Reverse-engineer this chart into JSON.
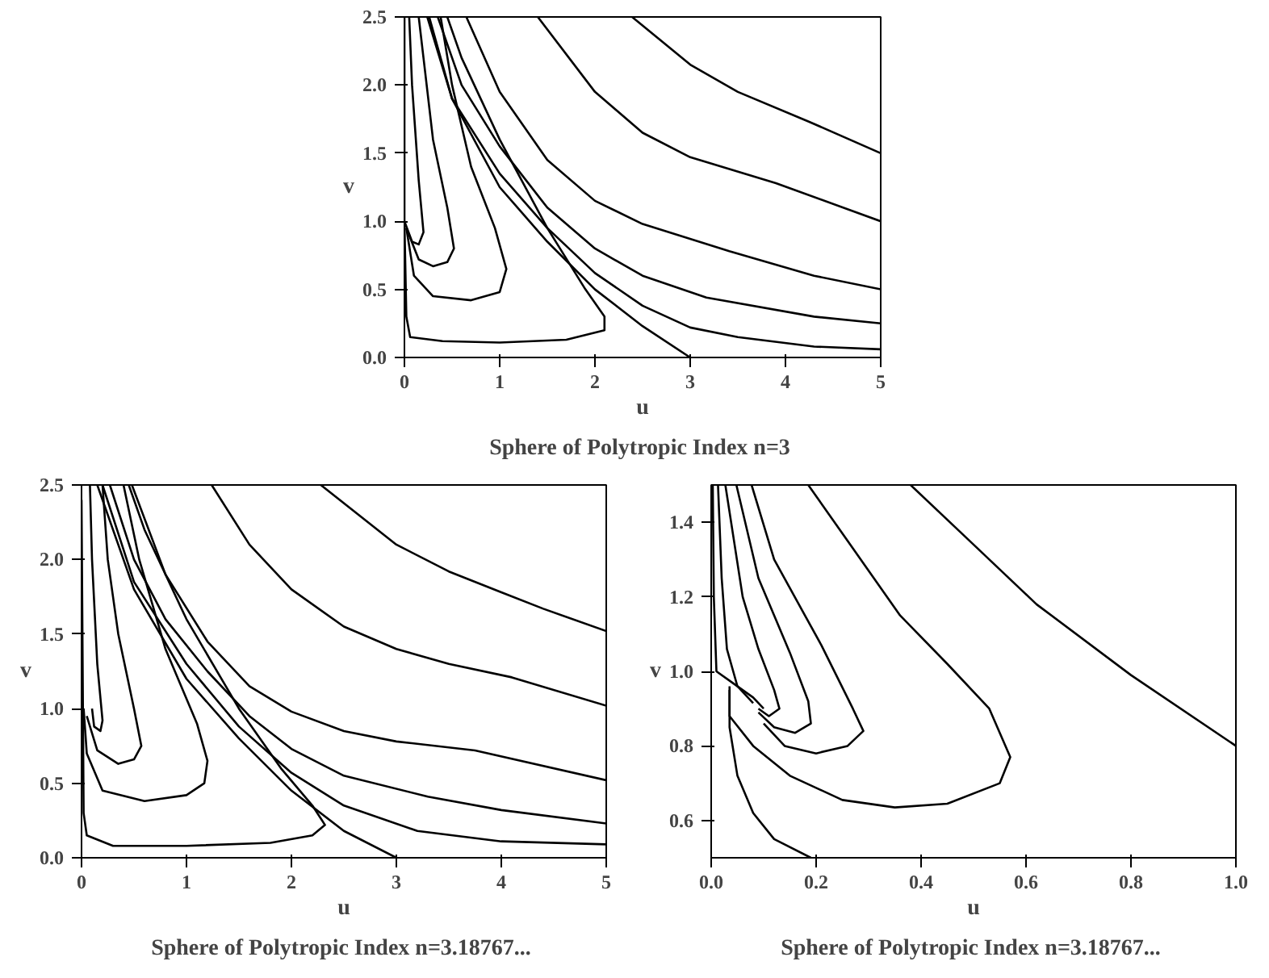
{
  "chart_data": [
    {
      "type": "line",
      "title": "Sphere of Polytropic Index  n=3",
      "xlabel": "u",
      "ylabel": "v",
      "xlim": [
        0,
        5
      ],
      "ylim": [
        0,
        2.5
      ],
      "xticks": [
        0,
        1,
        2,
        3,
        4,
        5
      ],
      "yticks": [
        {
          "value": 0,
          "label": "0.0"
        },
        {
          "value": 0.5,
          "label": "0.5"
        },
        {
          "value": 1,
          "label": "1.0"
        },
        {
          "value": 1.5,
          "label": "1.5"
        },
        {
          "value": 2,
          "label": "2.0"
        },
        {
          "value": 2.5,
          "label": "2.5"
        }
      ],
      "line_style": "solid",
      "series": [
        {
          "color": "#000000",
          "x": [
            2.39,
            3,
            3.5,
            4.25,
            5
          ],
          "values": [
            2.5,
            2.15,
            1.95,
            1.73,
            1.5
          ]
        },
        {
          "color": "#000000",
          "x": [
            1.4,
            2,
            2.5,
            3,
            3.9,
            5
          ],
          "values": [
            2.5,
            1.95,
            1.65,
            1.47,
            1.28,
            1.0
          ]
        },
        {
          "color": "#000000",
          "x": [
            0.65,
            1,
            1.5,
            2,
            2.5,
            3.41,
            4.3,
            5
          ],
          "values": [
            2.5,
            1.95,
            1.45,
            1.15,
            0.98,
            0.78,
            0.6,
            0.5
          ]
        },
        {
          "color": "#000000",
          "x": [
            0.35,
            0.6,
            1,
            1.5,
            2,
            2.5,
            3.17,
            4.3,
            5
          ],
          "values": [
            2.5,
            2.0,
            1.55,
            1.1,
            0.8,
            0.6,
            0.44,
            0.3,
            0.25
          ]
        },
        {
          "color": "#000000",
          "x": [
            0.26,
            0.5,
            1,
            1.5,
            2,
            2.5,
            3,
            3.5,
            4.3,
            5
          ],
          "values": [
            2.5,
            1.9,
            1.35,
            0.95,
            0.62,
            0.38,
            0.22,
            0.15,
            0.08,
            0.06
          ]
        },
        {
          "color": "#000000",
          "x": [
            0.24,
            0.5,
            1,
            1.5,
            2,
            2.5,
            3
          ],
          "values": [
            2.5,
            1.9,
            1.25,
            0.85,
            0.5,
            0.23,
            0
          ]
        },
        {
          "color": "#000000",
          "x": [
            0,
            0,
            0.02,
            0.06,
            0.4,
            1,
            1.7,
            2.1,
            2.1,
            1.9,
            1.5,
            1,
            0.6,
            0.45
          ],
          "values": [
            2.5,
            1.0,
            0.3,
            0.15,
            0.12,
            0.11,
            0.13,
            0.2,
            0.3,
            0.5,
            0.95,
            1.6,
            2.2,
            2.5
          ]
        },
        {
          "color": "#000000",
          "x": [
            0.02,
            0.1,
            0.3,
            0.7,
            1.0,
            1.07,
            0.95,
            0.7,
            0.5,
            0.38
          ],
          "values": [
            0.95,
            0.6,
            0.45,
            0.42,
            0.48,
            0.65,
            0.95,
            1.4,
            2.0,
            2.5
          ]
        },
        {
          "color": "#000000",
          "x": [
            0.02,
            0.15,
            0.3,
            0.45,
            0.52,
            0.45,
            0.3,
            0.2,
            0.15
          ],
          "values": [
            0.95,
            0.72,
            0.67,
            0.7,
            0.8,
            1.1,
            1.6,
            2.2,
            2.5
          ]
        },
        {
          "color": "#000000",
          "x": [
            0,
            0.08,
            0.15,
            0.2,
            0.15,
            0.08,
            0.05
          ],
          "values": [
            1.0,
            0.85,
            0.83,
            0.92,
            1.3,
            2.0,
            2.5
          ]
        }
      ]
    },
    {
      "type": "line",
      "title": "Sphere of Polytropic Index  n=3.18767...",
      "xlabel": "u",
      "ylabel": "v",
      "xlim": [
        0,
        5
      ],
      "ylim": [
        0,
        2.5
      ],
      "xticks": [
        0,
        1,
        2,
        3,
        4,
        5
      ],
      "yticks": [
        {
          "value": 0,
          "label": "0.0"
        },
        {
          "value": 0.5,
          "label": "0.5"
        },
        {
          "value": 1,
          "label": "1.0"
        },
        {
          "value": 1.5,
          "label": "1.5"
        },
        {
          "value": 2,
          "label": "2.0"
        },
        {
          "value": 2.5,
          "label": "2.5"
        }
      ],
      "line_style": "solid",
      "series": [
        {
          "color": "#000000",
          "x": [
            2.28,
            3,
            3.5,
            4,
            4.4,
            5
          ],
          "values": [
            2.5,
            2.1,
            1.92,
            1.78,
            1.67,
            1.52
          ]
        },
        {
          "color": "#000000",
          "x": [
            1.24,
            1.6,
            2,
            2.5,
            3,
            3.5,
            4.1,
            5
          ],
          "values": [
            2.5,
            2.1,
            1.8,
            1.55,
            1.4,
            1.3,
            1.21,
            1.02
          ]
        },
        {
          "color": "#000000",
          "x": [
            0.48,
            0.8,
            1.2,
            1.6,
            2,
            2.5,
            3,
            3.75,
            5
          ],
          "values": [
            2.5,
            1.9,
            1.45,
            1.15,
            0.98,
            0.85,
            0.78,
            0.72,
            0.52
          ]
        },
        {
          "color": "#000000",
          "x": [
            0.27,
            0.5,
            0.8,
            1.2,
            1.6,
            2,
            2.5,
            3.3,
            4,
            5
          ],
          "values": [
            2.5,
            2.0,
            1.6,
            1.25,
            0.95,
            0.73,
            0.55,
            0.41,
            0.32,
            0.23
          ]
        },
        {
          "color": "#000000",
          "x": [
            0.2,
            0.5,
            1,
            1.5,
            2,
            2.5,
            3.2,
            4,
            5
          ],
          "values": [
            2.5,
            1.85,
            1.3,
            0.88,
            0.57,
            0.35,
            0.18,
            0.11,
            0.09
          ]
        },
        {
          "color": "#000000",
          "x": [
            0.15,
            0.5,
            1,
            1.5,
            2,
            2.5,
            3
          ],
          "values": [
            2.5,
            1.8,
            1.2,
            0.8,
            0.45,
            0.18,
            0
          ]
        },
        {
          "color": "#000000",
          "x": [
            0,
            0.02,
            0.05,
            0.3,
            1,
            1.8,
            2.2,
            2.32,
            2.2,
            1.9,
            1.5,
            1,
            0.6,
            0.45
          ],
          "values": [
            2.4,
            0.3,
            0.15,
            0.08,
            0.08,
            0.1,
            0.15,
            0.22,
            0.35,
            0.6,
            1.0,
            1.6,
            2.2,
            2.5
          ]
        },
        {
          "color": "#000000",
          "x": [
            0.02,
            0.05,
            0.2,
            0.6,
            1.0,
            1.17,
            1.2,
            1.1,
            0.8,
            0.55,
            0.4
          ],
          "values": [
            1.0,
            0.7,
            0.45,
            0.38,
            0.42,
            0.5,
            0.65,
            0.9,
            1.4,
            2.0,
            2.5
          ]
        },
        {
          "color": "#000000",
          "x": [
            0.05,
            0.15,
            0.35,
            0.5,
            0.57,
            0.5,
            0.35,
            0.25,
            0.2
          ],
          "values": [
            0.95,
            0.72,
            0.63,
            0.66,
            0.75,
            1.0,
            1.5,
            2.0,
            2.5
          ]
        },
        {
          "color": "#000000",
          "x": [
            0.1,
            0.12,
            0.18,
            0.2,
            0.15,
            0.1,
            0.08
          ],
          "values": [
            1.0,
            0.88,
            0.85,
            0.92,
            1.3,
            2.0,
            2.5
          ]
        }
      ]
    },
    {
      "type": "line",
      "title": "Sphere of Polytropic Index  n=3.18767...",
      "xlabel": "u",
      "ylabel": "v",
      "xlim": [
        0,
        1
      ],
      "ylim": [
        0.5,
        1.5
      ],
      "xticks": [
        {
          "value": 0,
          "label": "0.0"
        },
        {
          "value": 0.2,
          "label": "0.2"
        },
        {
          "value": 0.4,
          "label": "0.4"
        },
        {
          "value": 0.6,
          "label": "0.6"
        },
        {
          "value": 0.8,
          "label": "0.8"
        },
        {
          "value": 1,
          "label": "1.0"
        }
      ],
      "yticks": [
        {
          "value": 0.6,
          "label": "0.6"
        },
        {
          "value": 0.8,
          "label": "0.8"
        },
        {
          "value": 1,
          "label": "1.0"
        },
        {
          "value": 1.2,
          "label": "1.2"
        },
        {
          "value": 1.4,
          "label": "1.4"
        }
      ],
      "line_style": "solid",
      "series": [
        {
          "color": "#000000",
          "x": [
            0.38,
            0.5,
            0.62,
            0.8,
            1.0
          ],
          "values": [
            1.5,
            1.34,
            1.18,
            0.99,
            0.8
          ]
        },
        {
          "color": "#000000",
          "x": [
            0.185,
            0.26,
            0.36,
            0.45,
            0.53,
            0.57,
            0.55,
            0.45,
            0.35,
            0.25,
            0.15,
            0.08,
            0.035,
            0.035
          ],
          "values": [
            1.5,
            1.35,
            1.15,
            1.02,
            0.9,
            0.77,
            0.7,
            0.645,
            0.635,
            0.655,
            0.72,
            0.8,
            0.88,
            0.95
          ]
        },
        {
          "color": "#000000",
          "x": [
            0.077,
            0.12,
            0.21,
            0.27,
            0.29,
            0.26,
            0.2,
            0.14,
            0.1
          ],
          "values": [
            1.5,
            1.3,
            1.07,
            0.9,
            0.84,
            0.8,
            0.78,
            0.8,
            0.86
          ]
        },
        {
          "color": "#000000",
          "x": [
            0.048,
            0.09,
            0.15,
            0.185,
            0.19,
            0.16,
            0.12,
            0.09
          ],
          "values": [
            1.5,
            1.25,
            1.05,
            0.92,
            0.86,
            0.835,
            0.85,
            0.89
          ]
        },
        {
          "color": "#000000",
          "x": [
            0.027,
            0.06,
            0.09,
            0.12,
            0.13,
            0.11,
            0.09
          ],
          "values": [
            1.5,
            1.2,
            1.06,
            0.95,
            0.9,
            0.88,
            0.9
          ]
        },
        {
          "color": "#000000",
          "x": [
            0.013,
            0.02,
            0.03,
            0.05,
            0.08
          ],
          "values": [
            1.5,
            1.25,
            1.06,
            0.96,
            0.915
          ]
        },
        {
          "color": "#000000",
          "x": [
            0.003,
            0.005,
            0.01,
            0.04,
            0.08,
            0.1
          ],
          "values": [
            1.5,
            1.2,
            1.0,
            0.97,
            0.93,
            0.9
          ]
        },
        {
          "color": "#000000",
          "x": [
            0.035,
            0.035,
            0.05,
            0.08,
            0.12,
            0.19
          ],
          "values": [
            0.96,
            0.85,
            0.72,
            0.62,
            0.55,
            0.5
          ]
        }
      ]
    }
  ]
}
